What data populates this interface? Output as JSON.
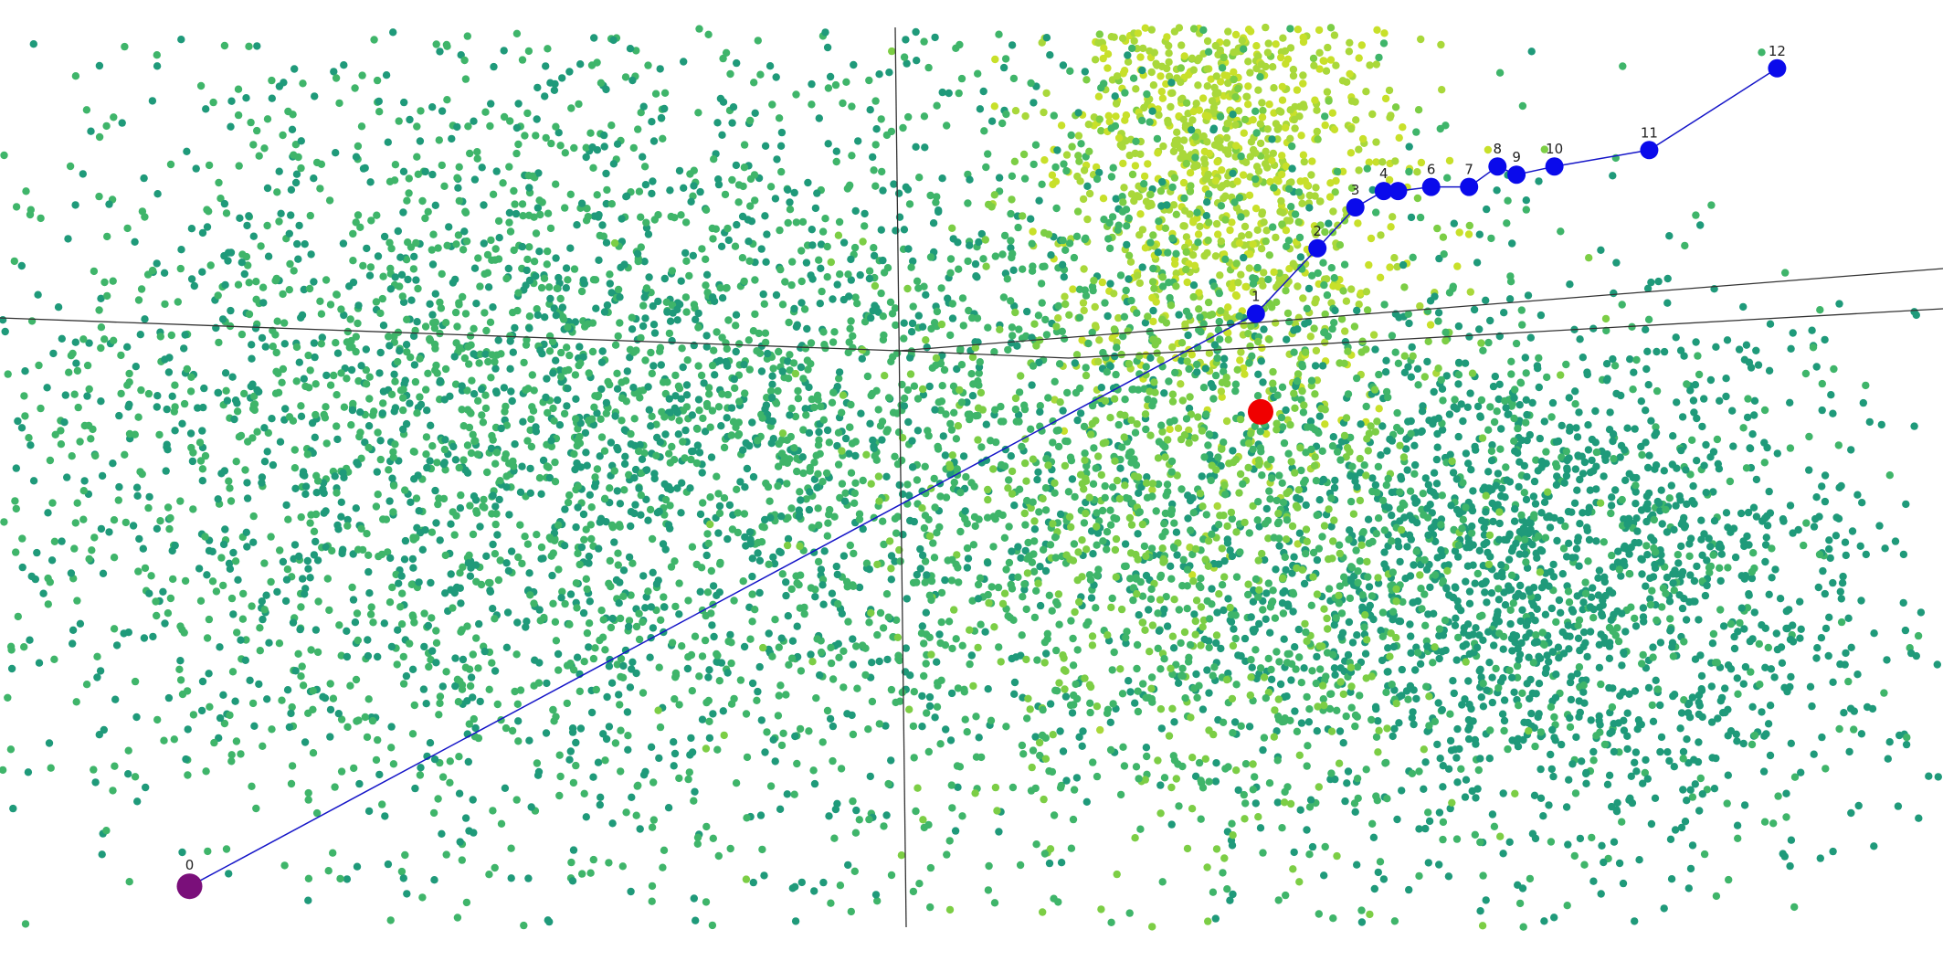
{
  "colors": {
    "background": "#ffffff",
    "axis_line": "#333333",
    "path_line": "#1515c8",
    "path_node": "#0a0aeb",
    "start_node": "#7a0f7a",
    "target_node": "#f00000",
    "cloud_palette": [
      "#1f9a7a",
      "#3fb56a",
      "#7cce45",
      "#a9d83a",
      "#c8e02a"
    ]
  },
  "chart_data": {
    "type": "scatter",
    "title": "",
    "xlabel": "",
    "ylabel": "",
    "grid": false,
    "legend": "none",
    "trajectory": {
      "labels": [
        "0",
        "1",
        "2",
        "3",
        "4",
        "",
        "6",
        "7",
        "8",
        "9",
        "10",
        "11",
        "12"
      ],
      "x": [
        -1.8,
        0.45,
        0.58,
        0.66,
        0.72,
        0.75,
        0.82,
        0.9,
        0.96,
        1.0,
        1.08,
        1.28,
        1.55
      ],
      "y": [
        -1.0,
        0.4,
        0.56,
        0.66,
        0.7,
        0.7,
        0.71,
        0.71,
        0.76,
        0.74,
        0.76,
        0.8,
        1.0
      ],
      "start_index": 0
    },
    "target_point": {
      "x": 0.46,
      "y": 0.16
    },
    "point_cloud": {
      "approx_count": 9000,
      "clusters": [
        {
          "name": "",
          "center": [
            0.4,
            0.85
          ],
          "spread": [
            0.18,
            0.35
          ],
          "weight": 0.14,
          "color_level": 0.75
        },
        {
          "name": "",
          "center": [
            1.05,
            -0.25
          ],
          "spread": [
            0.38,
            0.34
          ],
          "weight": 0.23,
          "color_level": 0.1
        },
        {
          "name": "",
          "center": [
            -0.9,
            0.1
          ],
          "spread": [
            0.75,
            0.55
          ],
          "weight": 0.5,
          "color_level": 0.22
        },
        {
          "name": "",
          "center": [
            0.3,
            -0.1
          ],
          "spread": [
            0.35,
            0.45
          ],
          "weight": 0.13,
          "color_level": 0.4
        }
      ],
      "x_range": [
        -2.2,
        1.9
      ],
      "y_range": [
        -1.1,
        1.1
      ]
    }
  }
}
